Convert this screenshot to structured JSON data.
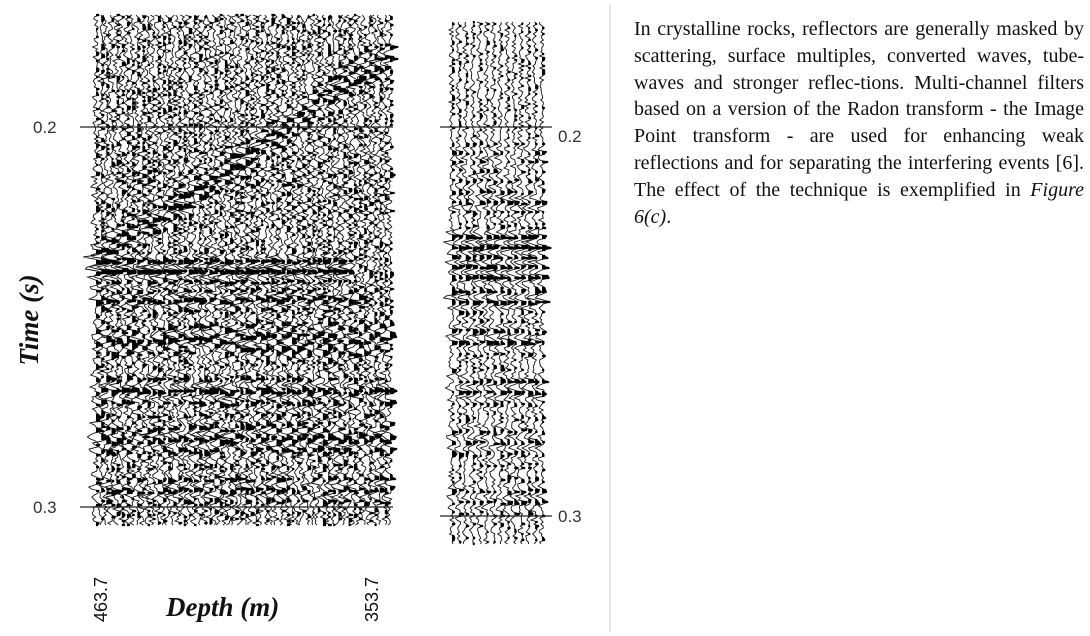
{
  "figure": {
    "y_axis_title": "Time (s)",
    "x_axis_title": "Depth (m)",
    "left_depth_label": "463.7",
    "right_depth_label": "353.7",
    "time_ticks": [
      "0.2",
      "0.3"
    ],
    "right_panel_ticks": [
      "0.2",
      "0.3"
    ]
  },
  "chart_data": {
    "type": "seismic-section",
    "ylabel": "Time (s)",
    "xlabel": "Depth (m)",
    "ylim": [
      0.3,
      0.2
    ],
    "x_range_labels": [
      "463.7",
      "353.7"
    ],
    "y_ticks": [
      0.2,
      0.3
    ]
  },
  "text": {
    "body": "In crystalline rocks, reflectors are generally masked by scattering, surface multiples, converted waves, tube-waves and stronger reflec-tions. Multi-channel filters based on a version of the Radon transform - the Image Point transform - are used for enhancing weak reflections and for separating the interfering events [6]. The effect of the technique is exemplified in ",
    "figure_ref": "Figure 6(c)",
    "tail": "."
  }
}
